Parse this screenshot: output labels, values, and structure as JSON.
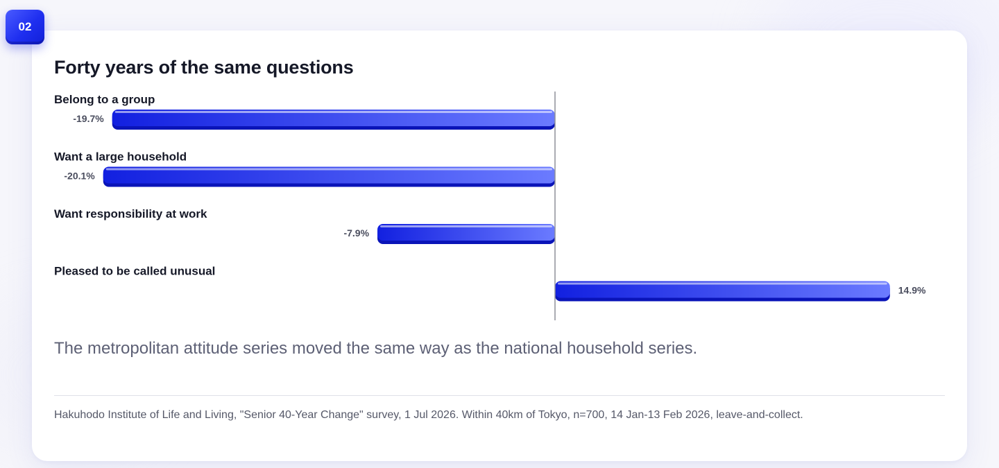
{
  "badge": {
    "label": "02"
  },
  "card": {
    "title": "Forty years of the same questions",
    "subtitle": "The metropolitan attitude series moved the same way as the national household series.",
    "source": "Hakuhodo Institute of Life and Living, \"Senior 40-Year Change\" survey, 1 Jul 2026. Within 40km of Tokyo, n=700, 14 Jan-13 Feb 2026, leave-and-collect."
  },
  "colors": {
    "bar_dark": "#1220e0",
    "bar_light": "#6b7bff",
    "axis": "#8e8f99",
    "label": "#151827",
    "value": "#4a4d5e"
  },
  "chart_data": {
    "type": "bar",
    "orientation": "horizontal",
    "unit": "%",
    "categories": [
      "Belong to a group",
      "Want a large household",
      "Want responsibility at work",
      "Pleased to be called unusual"
    ],
    "values": [
      -19.7,
      -20.1,
      -7.9,
      14.9
    ],
    "value_labels": [
      "-19.7%",
      "-20.1%",
      "-7.9%",
      "14.9%"
    ],
    "xlim": [
      -22.0,
      22.0
    ],
    "grid": false,
    "legend": "none"
  }
}
